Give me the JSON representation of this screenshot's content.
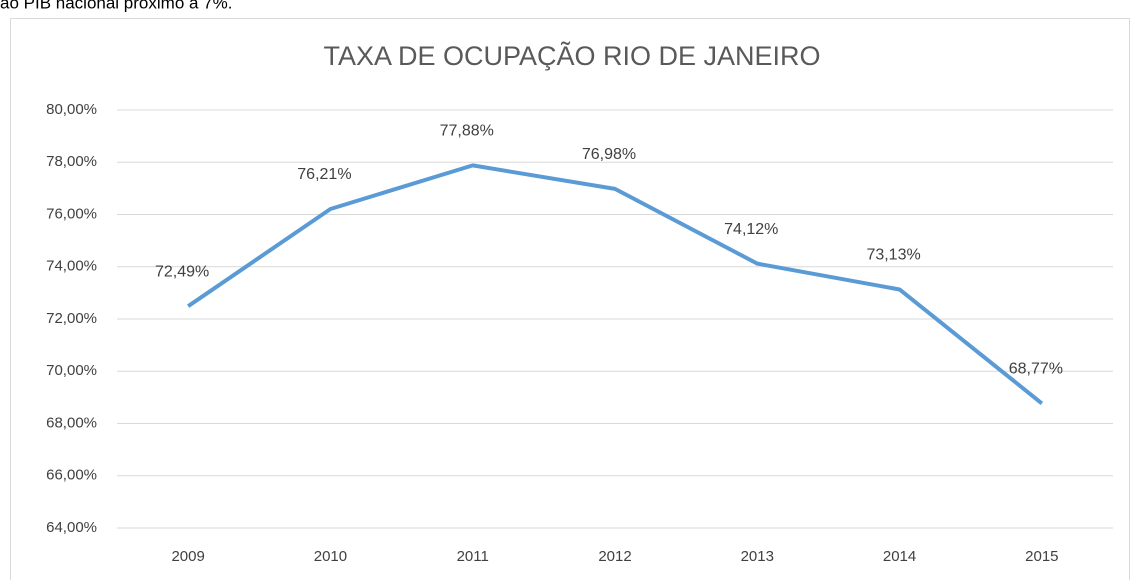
{
  "header_text": "ao PIB nacional próximo a 7%.",
  "chart_data": {
    "type": "line",
    "title": "TAXA DE OCUPAÇÃO RIO DE JANEIRO",
    "categories": [
      "2009",
      "2010",
      "2011",
      "2012",
      "2013",
      "2014",
      "2015"
    ],
    "series": [
      {
        "name": "Taxa de ocupação",
        "color": "#5b9bd5",
        "values": [
          72.49,
          76.21,
          77.88,
          76.98,
          74.12,
          73.13,
          68.77
        ],
        "value_labels": [
          "72,49%",
          "76,21%",
          "77,88%",
          "76,98%",
          "74,12%",
          "73,13%",
          "68,77%"
        ]
      }
    ],
    "ylim": [
      64,
      80
    ],
    "yticks": [
      {
        "value": 64,
        "label": "64,00%"
      },
      {
        "value": 66,
        "label": "66,00%"
      },
      {
        "value": 68,
        "label": "68,00%"
      },
      {
        "value": 70,
        "label": "70,00%"
      },
      {
        "value": 72,
        "label": "72,00%"
      },
      {
        "value": 74,
        "label": "74,00%"
      },
      {
        "value": 76,
        "label": "76,00%"
      },
      {
        "value": 78,
        "label": "78,00%"
      },
      {
        "value": 80,
        "label": "80,00%"
      }
    ],
    "grid": true
  }
}
